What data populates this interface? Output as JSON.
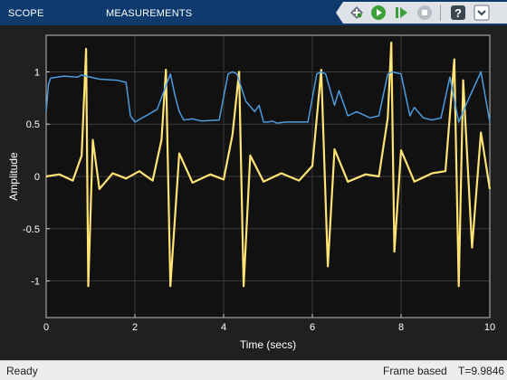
{
  "toolstrip": {
    "tabs": [
      {
        "label": "SCOPE"
      },
      {
        "label": "MEASUREMENTS"
      }
    ],
    "tools": [
      "highlight-signal-icon",
      "run-icon",
      "step-forward-icon",
      "stop-icon",
      "help-icon",
      "expand-toolstrip-icon"
    ]
  },
  "colors": {
    "toolstrip": "#0e3a6e",
    "plot_background": "#111111",
    "series_1": "#4b9ce0",
    "series_2": "#ffe375",
    "run_green": "#3ca13a"
  },
  "chart_data": {
    "type": "line",
    "xlabel": "Time (secs)",
    "ylabel": "Amplitude",
    "xlim": [
      0,
      10
    ],
    "ylim": [
      -1.35,
      1.35
    ],
    "grid": true,
    "x_ticks": [
      "0",
      "2",
      "4",
      "6",
      "8",
      "10"
    ],
    "y_ticks": [
      "1",
      "0.5",
      "0",
      "-0.5",
      "-1"
    ],
    "series": [
      {
        "color": "#4b9ce0",
        "x": [
          0,
          0.05,
          0.1,
          0.4,
          0.7,
          0.8,
          0.9,
          1.2,
          1.6,
          1.8,
          1.9,
          2.0,
          2.5,
          2.8,
          2.9,
          3.0,
          3.1,
          3.3,
          3.5,
          3.9,
          4.1,
          4.2,
          4.3,
          4.5,
          4.7,
          4.8,
          4.9,
          5.0,
          5.1,
          5.2,
          5.4,
          5.6,
          5.9,
          6.1,
          6.2,
          6.3,
          6.5,
          6.6,
          6.8,
          7.0,
          7.3,
          7.5,
          7.7,
          7.8,
          8.0,
          8.2,
          8.3,
          8.5,
          8.7,
          8.9,
          9.1,
          9.3,
          9.5,
          9.8,
          10.0
        ],
        "y": [
          0.62,
          0.88,
          0.94,
          0.96,
          0.95,
          0.97,
          0.96,
          0.93,
          0.92,
          0.9,
          0.58,
          0.52,
          0.64,
          0.98,
          0.78,
          0.62,
          0.54,
          0.55,
          0.53,
          0.54,
          0.98,
          1.0,
          0.98,
          0.72,
          0.62,
          0.68,
          0.52,
          0.52,
          0.53,
          0.51,
          0.52,
          0.52,
          0.52,
          0.98,
          1.0,
          0.98,
          0.68,
          0.82,
          0.58,
          0.62,
          0.56,
          0.58,
          0.98,
          1.0,
          0.98,
          0.58,
          0.66,
          0.56,
          0.54,
          0.56,
          0.95,
          0.52,
          0.72,
          1.0,
          0.52
        ]
      },
      {
        "color": "#ffe375",
        "x": [
          0.0,
          0.3,
          0.6,
          0.8,
          0.9,
          0.95,
          1.05,
          1.2,
          1.5,
          1.8,
          2.1,
          2.4,
          2.6,
          2.7,
          2.8,
          3.0,
          3.3,
          3.7,
          4.0,
          4.2,
          4.35,
          4.45,
          4.6,
          4.9,
          5.3,
          5.7,
          6.0,
          6.2,
          6.35,
          6.5,
          6.8,
          7.2,
          7.5,
          7.7,
          7.78,
          7.85,
          8.0,
          8.3,
          8.7,
          9.0,
          9.2,
          9.3,
          9.4,
          9.6,
          9.8,
          10.0
        ],
        "y": [
          0.0,
          0.02,
          -0.04,
          0.2,
          1.22,
          -1.05,
          0.35,
          -0.12,
          0.03,
          -0.02,
          0.05,
          -0.04,
          0.35,
          1.02,
          -1.05,
          0.22,
          -0.06,
          0.02,
          -0.03,
          0.4,
          1.0,
          -1.05,
          0.2,
          -0.05,
          0.03,
          -0.04,
          0.1,
          1.02,
          -0.86,
          0.26,
          -0.05,
          0.02,
          0.0,
          0.56,
          1.28,
          -0.72,
          0.25,
          -0.05,
          0.03,
          0.05,
          1.12,
          -1.05,
          0.92,
          -0.68,
          0.42,
          -0.12
        ]
      }
    ]
  },
  "statusbar": {
    "status": "Ready",
    "mode": "Frame based",
    "time": "T=9.9846"
  }
}
